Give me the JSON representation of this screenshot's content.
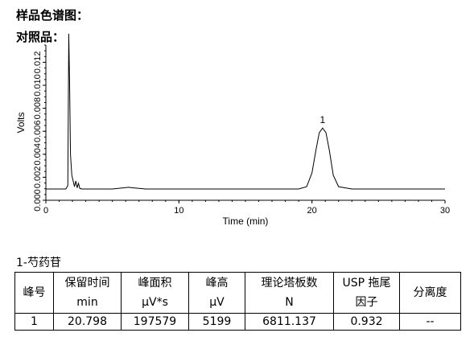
{
  "headings": {
    "sample": "样品色谱图：",
    "reference": "对照品："
  },
  "chart_data": {
    "type": "line",
    "xlabel": "Time (min)",
    "ylabel": "Volts",
    "xlim": [
      0,
      30
    ],
    "ylim": [
      0,
      0.0135
    ],
    "x_ticks": [
      0,
      10,
      20,
      30
    ],
    "y_ticks": [
      0,
      0.002,
      0.004,
      0.006,
      0.008,
      0.01,
      0.012
    ],
    "y_tick_labels": [
      "0.000",
      "0.002",
      "0.004",
      "0.006",
      "0.008",
      "0.010",
      "0.012"
    ],
    "x_tick_labels": [
      "0",
      "10",
      "20",
      "30"
    ],
    "grid": false,
    "series": [
      {
        "x": [
          0.0,
          1.0,
          1.5,
          1.65,
          1.72,
          1.78,
          1.85,
          1.95,
          2.05,
          2.15,
          2.25,
          2.35,
          2.45,
          2.55,
          2.7,
          3.0,
          5.0,
          5.8,
          6.2,
          6.6,
          7.5,
          10.0,
          15.0,
          19.0,
          19.6,
          20.0,
          20.3,
          20.55,
          20.8,
          21.05,
          21.3,
          21.6,
          22.0,
          23.0,
          26.0,
          30.0
        ],
        "y": [
          0.0,
          0.0,
          0.0,
          0.0003,
          0.0135,
          0.0095,
          0.003,
          0.0012,
          0.0007,
          0.0002,
          0.0007,
          0.0001,
          0.0005,
          5e-05,
          0.0,
          0.0,
          0.0,
          0.0001,
          0.00015,
          0.0001,
          0.0,
          0.0,
          0.0,
          0.0,
          0.0002,
          0.0014,
          0.0034,
          0.0049,
          0.0053,
          0.0049,
          0.0034,
          0.0012,
          0.0002,
          0.0,
          0.0,
          0.0
        ]
      }
    ],
    "peak_annotations": [
      {
        "label": "1",
        "x": 20.8,
        "y": 0.0053
      }
    ]
  },
  "results": {
    "compound": "1-芍药苷",
    "headers": [
      [
        "峰号"
      ],
      [
        "保留时间",
        "min"
      ],
      [
        "峰面积",
        "μV*s"
      ],
      [
        "峰高",
        "μV"
      ],
      [
        "理论塔板数",
        "N"
      ],
      [
        "USP 拖尾",
        "因子"
      ],
      [
        "分离度"
      ]
    ],
    "rows": [
      [
        "1",
        "20.798",
        "197579",
        "5199",
        "6811.137",
        "0.932",
        "--"
      ]
    ]
  }
}
